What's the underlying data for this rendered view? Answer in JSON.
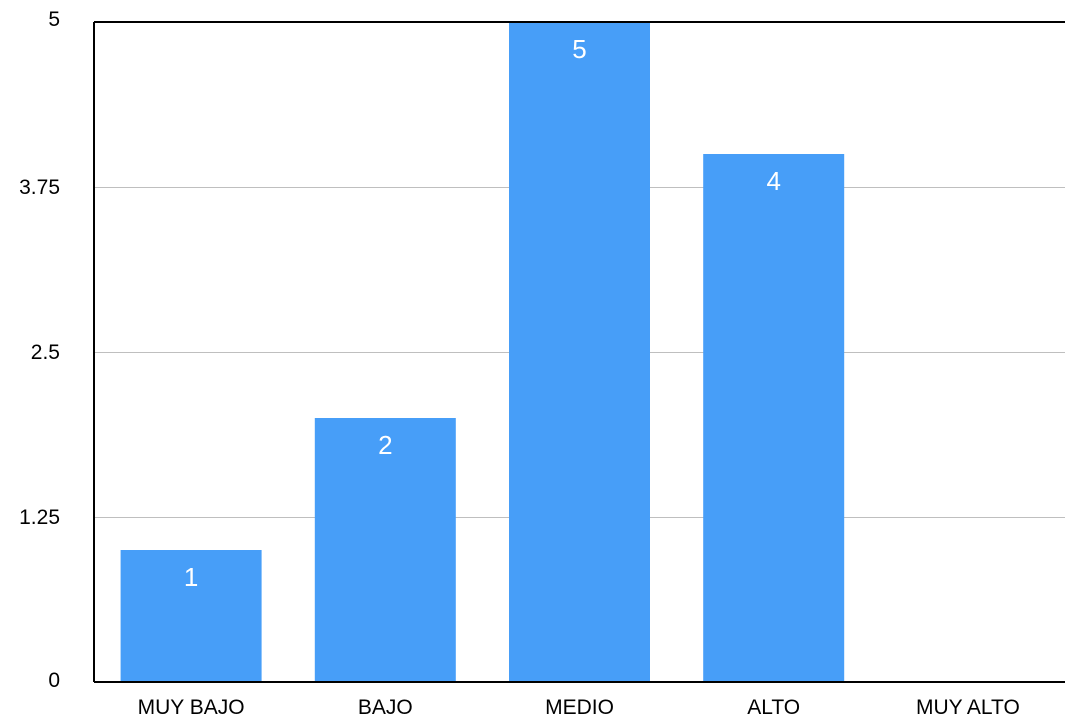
{
  "chart_data": {
    "type": "bar",
    "categories": [
      "MUY BAJO",
      "BAJO",
      "MEDIO",
      "ALTO",
      "MUY ALTO"
    ],
    "values": [
      1,
      2,
      5,
      4,
      0
    ],
    "data_labels": [
      "1",
      "2",
      "5",
      "4",
      ""
    ],
    "ylim": [
      0,
      5
    ],
    "yticks": [
      0,
      1.25,
      2.5,
      3.75,
      5
    ],
    "ytick_labels": [
      "0",
      "1.25",
      "2.5",
      "3.75",
      "5"
    ],
    "grid": true,
    "legend": "none",
    "bar_color": "#479EF8",
    "label_color": "#FFFFFF",
    "axis_color": "#000000",
    "grid_color": "#BFBFBF"
  }
}
